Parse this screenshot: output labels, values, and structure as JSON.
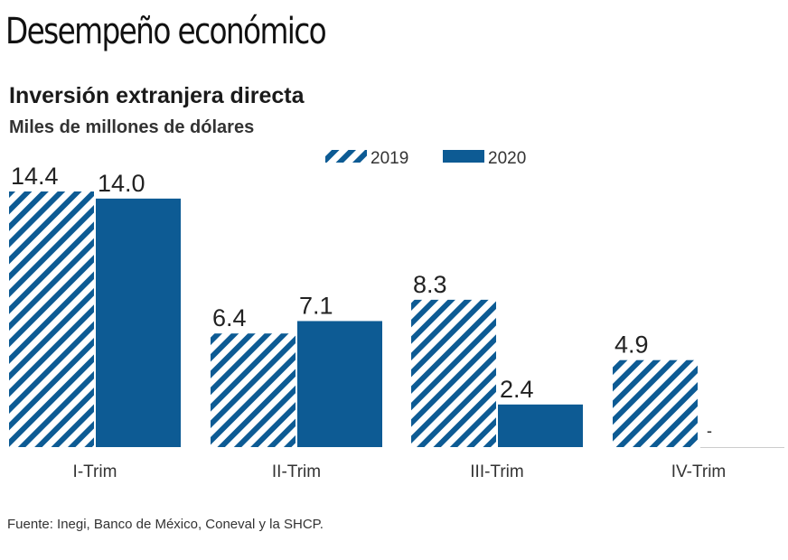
{
  "headline": "Desempeño económico",
  "chart_data": {
    "type": "bar",
    "title": "Inversión extranjera directa",
    "subtitle": "Miles de millones de dólares",
    "categories": [
      "I-Trim",
      "II-Trim",
      "III-Trim",
      "IV-Trim"
    ],
    "series": [
      {
        "name": "2019",
        "values": [
          14.4,
          6.4,
          8.3,
          4.9
        ],
        "labels": [
          "14.4",
          "6.4",
          "8.3",
          "4.9"
        ],
        "style": "hatched",
        "color": "#0d5b94"
      },
      {
        "name": "2020",
        "values": [
          14.0,
          7.1,
          2.4,
          null
        ],
        "labels": [
          "14.0",
          "7.1",
          "2.4",
          "-"
        ],
        "style": "solid",
        "color": "#0d5b94"
      }
    ],
    "legend": "top-right",
    "grid": false,
    "ylim": [
      0,
      14.4
    ]
  },
  "source": "Fuente: Inegi, Banco de México, Coneval y la SHCP."
}
